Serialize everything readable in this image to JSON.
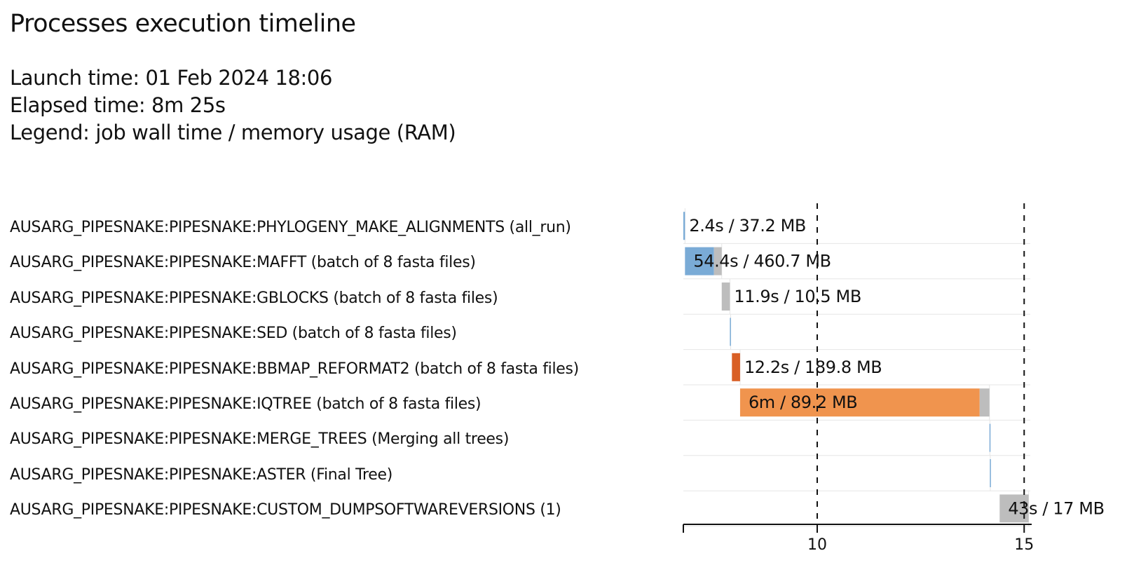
{
  "header": {
    "title": "Processes execution timeline",
    "launch_time": "Launch time: 01 Feb 2024 18:06",
    "elapsed_time": "Elapsed time: 8m 25s",
    "legend": "Legend: job wall time / memory usage (RAM)"
  },
  "colors": {
    "grey": "#bdbdbd",
    "light_blue": "#7aabd6",
    "dark_orange": "#d95f25",
    "orange": "#f0944e",
    "grid": "#e6e6e6"
  },
  "chart_data": {
    "type": "timeline",
    "title": "Processes execution timeline",
    "xlabel": "",
    "ylabel": "",
    "x_unit": "minutes since launch",
    "xlim": [
      0,
      8.5
    ],
    "x_ticks": [
      10,
      15
    ],
    "x_tick_positions": [
      3.28,
      8.35
    ],
    "dashed_gridlines": true,
    "processes": [
      {
        "label": "AUSARG_PIPESNAKE:PIPESNAKE:PHYLOGENY_MAKE_ALIGNMENTS (all_run)",
        "start": 0.0,
        "exec_end": 0.04,
        "end": 0.04,
        "color": "#7aabd6",
        "annotation": "2.4s / 37.2 MB"
      },
      {
        "label": "AUSARG_PIPESNAKE:PIPESNAKE:MAFFT (batch of 8 fasta files)",
        "start": 0.04,
        "exec_end": 0.75,
        "end": 0.94,
        "color": "#7aabd6",
        "annotation": "54.4s / 460.7 MB"
      },
      {
        "label": "AUSARG_PIPESNAKE:PIPESNAKE:GBLOCKS (batch of 8 fasta files)",
        "start": 0.94,
        "exec_end": 0.94,
        "end": 1.14,
        "color": "#7aabd6",
        "annotation": "11.9s / 10.5 MB"
      },
      {
        "label": "AUSARG_PIPESNAKE:PIPESNAKE:SED (batch of 8 fasta files)",
        "start": 1.14,
        "exec_end": 1.16,
        "end": 1.16,
        "color": "#7aabd6",
        "annotation": ""
      },
      {
        "label": "AUSARG_PIPESNAKE:PIPESNAKE:BBMAP_REFORMAT2 (batch of 8 fasta files)",
        "start": 1.19,
        "exec_end": 1.39,
        "end": 1.39,
        "color": "#d95f25",
        "annotation": "12.2s / 189.8 MB"
      },
      {
        "label": "AUSARG_PIPESNAKE:PIPESNAKE:IQTREE (batch of 8 fasta files)",
        "start": 1.39,
        "exec_end": 7.26,
        "end": 7.5,
        "color": "#f0944e",
        "annotation": "6m / 89.2 MB"
      },
      {
        "label": "AUSARG_PIPESNAKE:PIPESNAKE:MERGE_TREES (Merging all trees)",
        "start": 7.5,
        "exec_end": 7.51,
        "end": 7.51,
        "color": "#7aabd6",
        "annotation": ""
      },
      {
        "label": "AUSARG_PIPESNAKE:PIPESNAKE:ASTER (Final Tree)",
        "start": 7.51,
        "exec_end": 7.52,
        "end": 7.52,
        "color": "#7aabd6",
        "annotation": ""
      },
      {
        "label": "AUSARG_PIPESNAKE:PIPESNAKE:CUSTOM_DUMPSOFTWAREVERSIONS (1)",
        "start": 7.75,
        "exec_end": 7.75,
        "end": 8.46,
        "color": "#bdbdbd",
        "annotation": "43s / 17 MB"
      }
    ]
  }
}
